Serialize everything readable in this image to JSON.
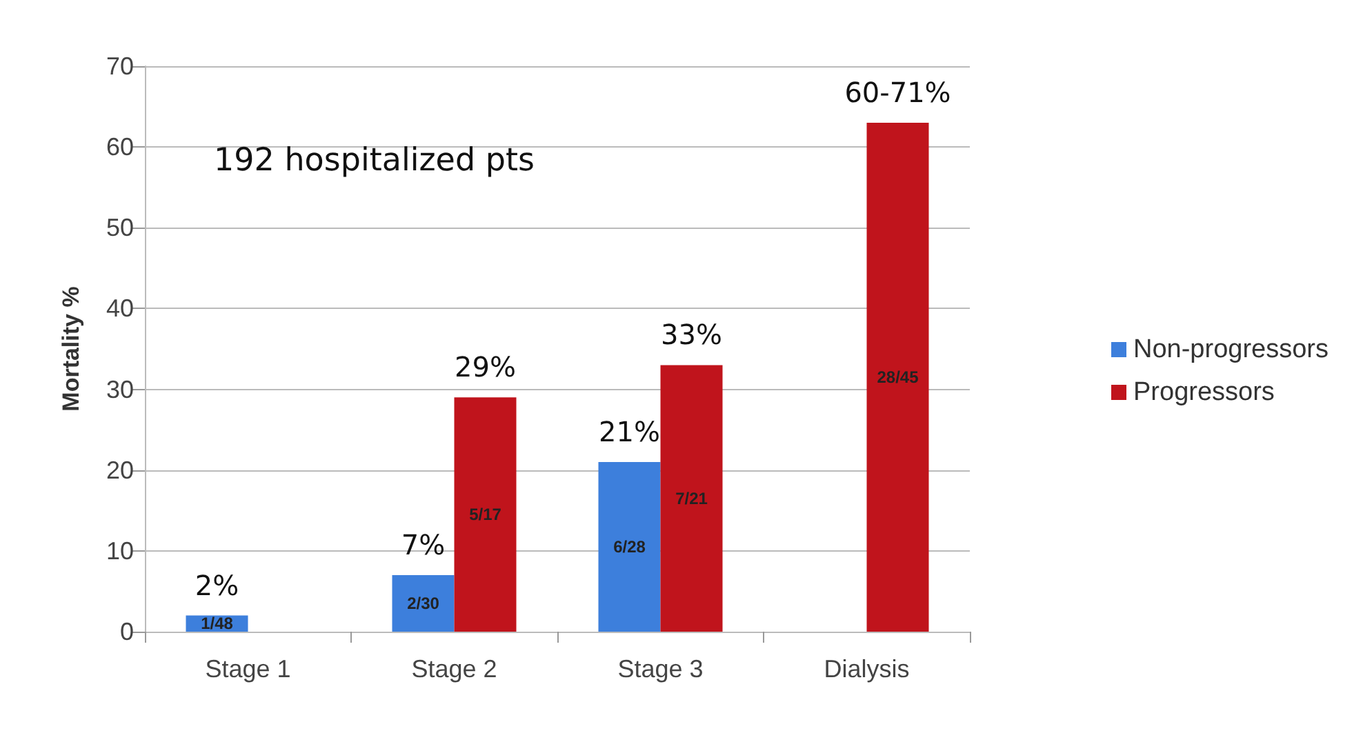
{
  "chart_data": {
    "type": "bar",
    "ylabel": "Mortality %",
    "categories": [
      "Stage 1",
      "Stage 2",
      "Stage 3",
      "Dialysis"
    ],
    "series": [
      {
        "name": "Non-progressors",
        "color": "#3d7fdc",
        "values": [
          2,
          7,
          21,
          null
        ],
        "value_labels": [
          "1/48",
          "2/30",
          "6/28",
          null
        ]
      },
      {
        "name": "Progressors",
        "color": "#c0141c",
        "values": [
          null,
          29,
          33,
          63
        ],
        "value_labels": [
          null,
          "5/17",
          "7/21",
          "28/45"
        ]
      }
    ],
    "ylim": [
      0,
      70
    ],
    "yticks": [
      0,
      10,
      20,
      30,
      40,
      50,
      60,
      70
    ],
    "grid": "y",
    "legend": "right",
    "annotations": [
      "192 hospitalized pts",
      {
        "text": "2%",
        "x": "Stage 1",
        "y": 2
      },
      {
        "text": "7%",
        "x": "Stage 2",
        "y": 7
      },
      {
        "text": "29%",
        "x": "Stage 2",
        "y": 29
      },
      {
        "text": "21%",
        "x": "Stage 3",
        "y": 21
      },
      {
        "text": "33%",
        "x": "Stage 3",
        "y": 33
      },
      {
        "text": "60-71%",
        "x": "Dialysis",
        "y": 63
      }
    ]
  }
}
